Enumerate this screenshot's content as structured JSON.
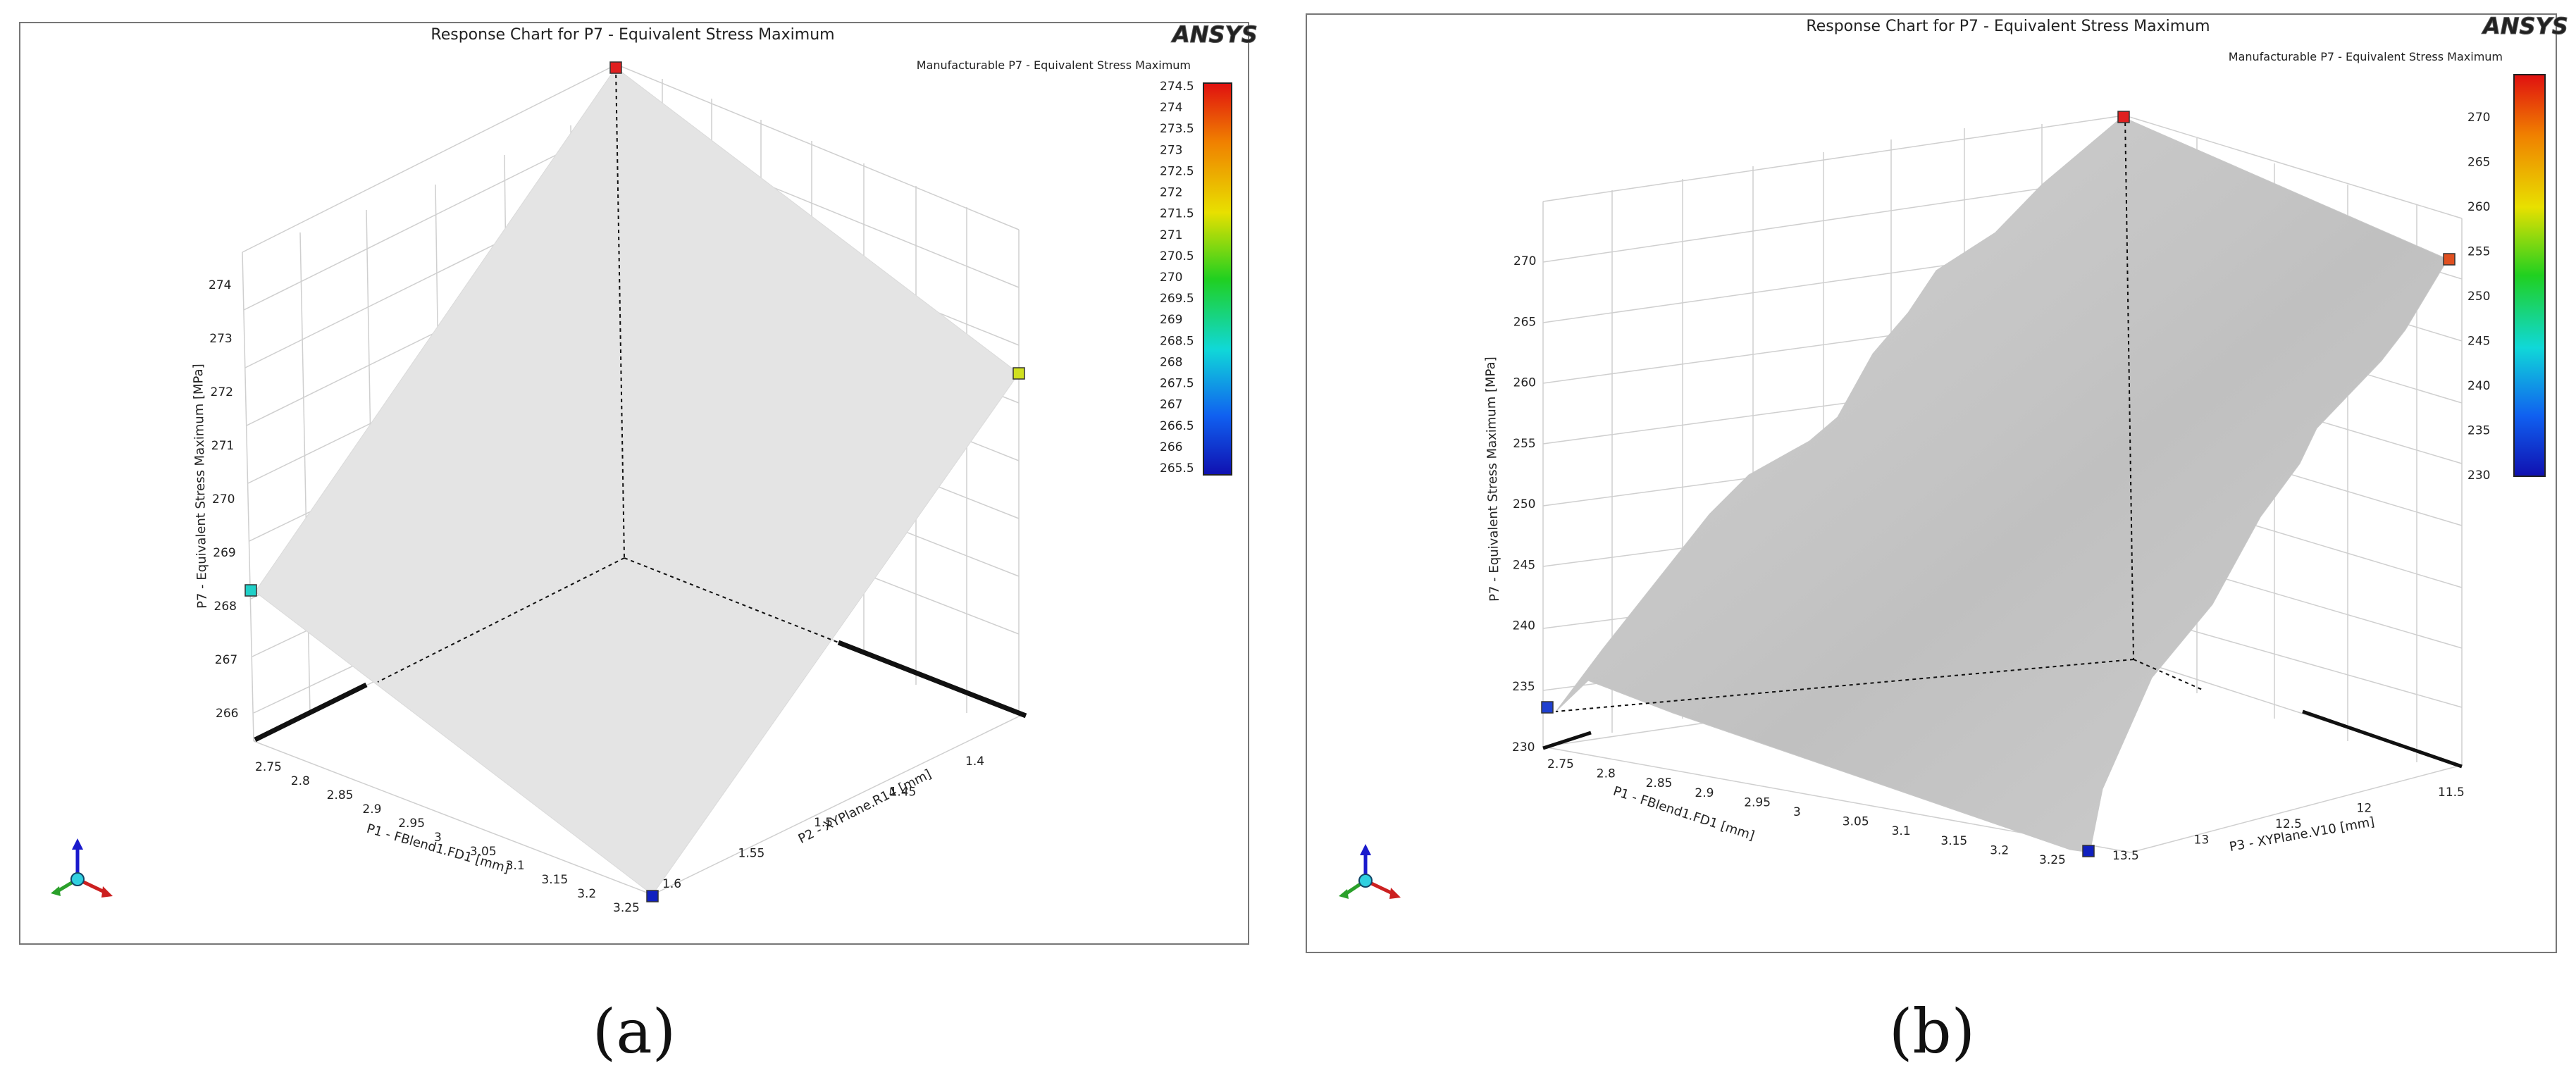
{
  "chart_data": [
    {
      "type": "surface3d",
      "panel": "(a)",
      "title": "Response Chart for P7 - Equivalent Stress Maximum",
      "legend_title": "Manufacturable P7 - Equivalent Stress Maximum",
      "logo": "ANSYS",
      "xlabel": "P1 - FBlend1.FD1  [mm]",
      "ylabel": "P2 - XYPlane.R14  [mm]",
      "zlabel": "P7 - Equivalent Stress Maximum  [MPa]",
      "x_ticks": [
        "2.75",
        "2.8",
        "2.85",
        "2.9",
        "2.95",
        "3",
        "3.05",
        "3.1",
        "3.15",
        "3.2",
        "3.25"
      ],
      "y_ticks": [
        "1.6",
        "1.55",
        "1.5",
        "1.45",
        "1.4"
      ],
      "z_ticks": [
        "266",
        "267",
        "268",
        "269",
        "270",
        "271",
        "272",
        "273",
        "274"
      ],
      "zlim": [
        265.5,
        274.5
      ],
      "colorbar_ticks": [
        "274.5",
        "274",
        "273.5",
        "273",
        "272.5",
        "272",
        "271.5",
        "271",
        "270.5",
        "270",
        "269.5",
        "269",
        "268.5",
        "268",
        "267.5",
        "267",
        "266.5",
        "266",
        "265.5"
      ],
      "points": [
        {
          "x": 3.0,
          "y": 1.5,
          "z": 274.5,
          "color": "#e02020"
        },
        {
          "x": 2.75,
          "y": 1.6,
          "z": 268.2,
          "color": "#20d0c8"
        },
        {
          "x": 3.25,
          "y": 1.4,
          "z": 271.2,
          "color": "#d0e020"
        },
        {
          "x": 3.25,
          "y": 1.6,
          "z": 265.5,
          "color": "#1020c0"
        }
      ]
    },
    {
      "type": "surface3d",
      "panel": "(b)",
      "title": "Response Chart for P7 - Equivalent Stress Maximum",
      "legend_title": "Manufacturable P7 - Equivalent Stress Maximum",
      "logo": "ANSYS",
      "xlabel": "P1 - FBlend1.FD1  [mm]",
      "ylabel": "P3 - XYPlane.V10  [mm]",
      "zlabel": "P7 - Equivalent Stress Maximum  [MPa]",
      "x_ticks": [
        "2.75",
        "2.8",
        "2.85",
        "2.9",
        "2.95",
        "3",
        "3.05",
        "3.1",
        "3.15",
        "3.2",
        "3.25"
      ],
      "y_ticks": [
        "13.5",
        "13",
        "12.5",
        "12",
        "11.5"
      ],
      "z_ticks": [
        "230",
        "235",
        "240",
        "245",
        "250",
        "255",
        "260",
        "265",
        "270"
      ],
      "zlim": [
        230,
        273
      ],
      "colorbar_ticks": [
        "270",
        "265",
        "260",
        "255",
        "250",
        "245",
        "240",
        "235",
        "230"
      ],
      "points": [
        {
          "x": 3.0,
          "y": 12.5,
          "z": 273,
          "color": "#e02020"
        },
        {
          "x": 3.25,
          "y": 11.5,
          "z": 270.5,
          "color": "#e05020"
        },
        {
          "x": 2.75,
          "y": 13.5,
          "z": 232.5,
          "color": "#2040d0"
        },
        {
          "x": 3.25,
          "y": 13.5,
          "z": 230,
          "color": "#1020c0"
        }
      ]
    }
  ]
}
